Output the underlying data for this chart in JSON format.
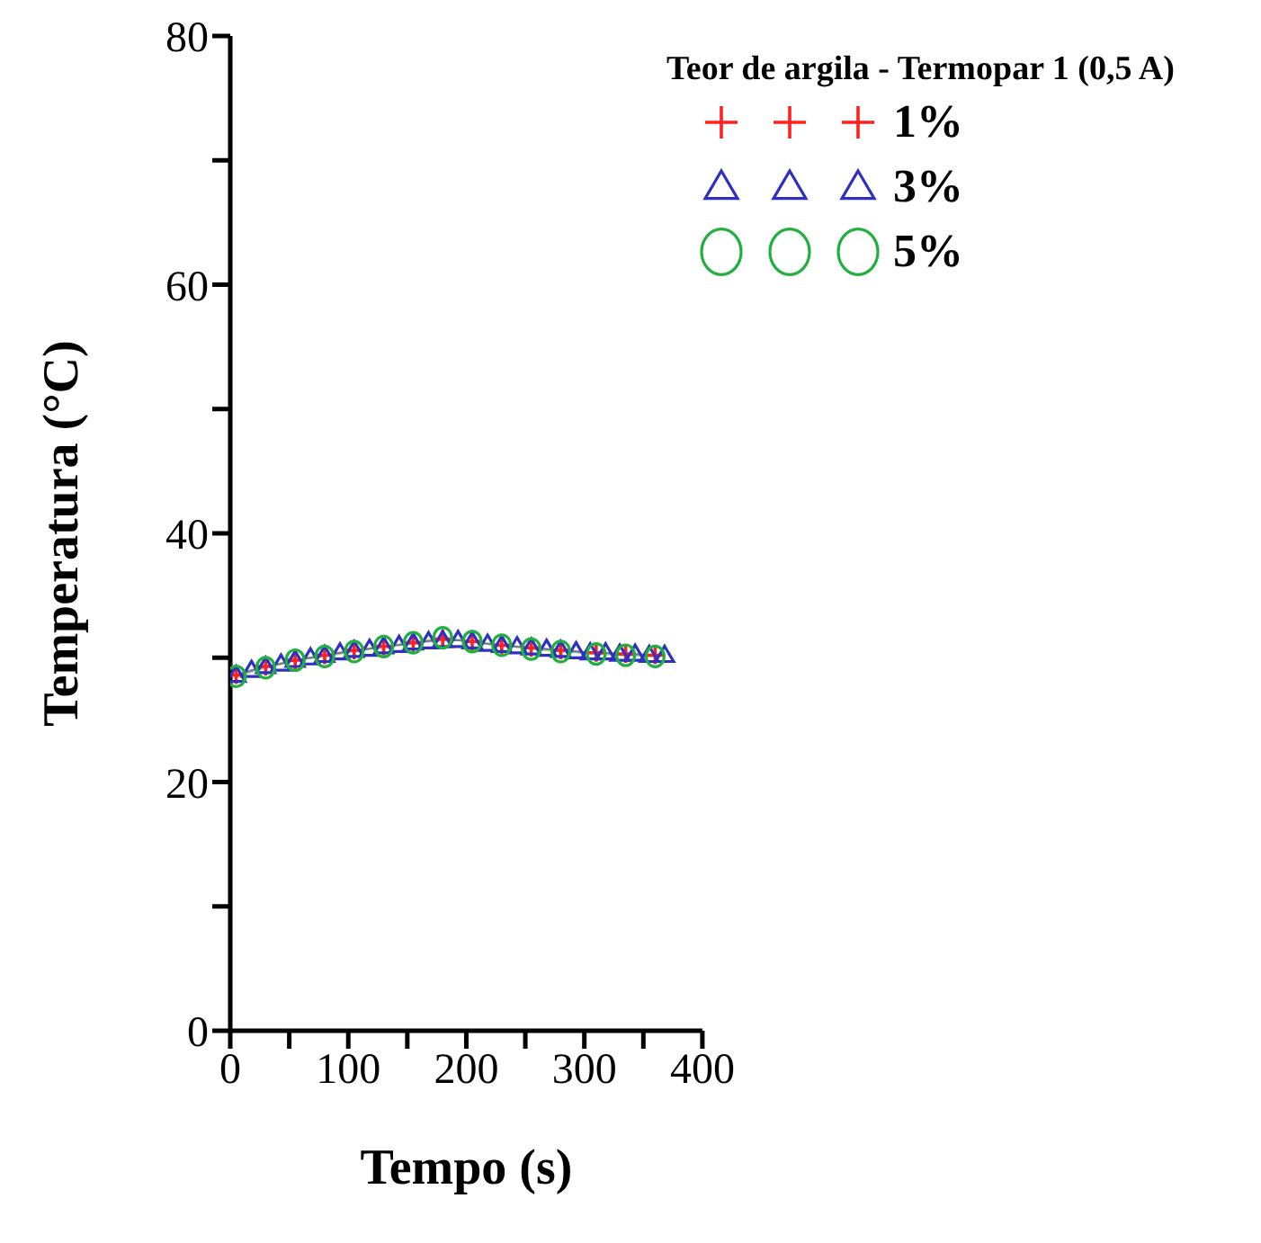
{
  "chart_data": {
    "type": "line",
    "xlabel": "Tempo (s)",
    "ylabel": "Temperatura  (°C)",
    "legend_title": "Teor de argila - Termopar 1 (0,5 A)",
    "series": [
      {
        "name": "1%",
        "color": "#ff2020",
        "marker": "cross",
        "x": [
          5,
          30,
          55,
          80,
          105,
          130,
          155,
          180,
          205,
          230,
          255,
          280,
          310,
          335,
          360
        ],
        "values": [
          28.6,
          29.3,
          29.8,
          30.2,
          30.6,
          30.9,
          31.2,
          31.5,
          31.3,
          31.0,
          30.8,
          30.6,
          30.4,
          30.3,
          30.2
        ]
      },
      {
        "name": "3%",
        "color": "#3030c0",
        "marker": "triangle",
        "x": [
          5,
          18,
          30,
          43,
          55,
          68,
          80,
          93,
          105,
          118,
          130,
          143,
          155,
          168,
          180,
          193,
          205,
          218,
          230,
          243,
          255,
          268,
          280,
          293,
          305,
          318,
          330,
          343,
          355,
          368
        ],
        "values": [
          28.6,
          29.0,
          29.3,
          29.5,
          29.8,
          30.0,
          30.2,
          30.4,
          30.6,
          30.7,
          30.9,
          31.0,
          31.2,
          31.3,
          31.4,
          31.4,
          31.3,
          31.1,
          31.0,
          30.9,
          30.8,
          30.7,
          30.6,
          30.5,
          30.4,
          30.4,
          30.3,
          30.3,
          30.2,
          30.2
        ]
      },
      {
        "name": "5%",
        "color": "#20b040",
        "marker": "circle",
        "x": [
          5,
          30,
          55,
          80,
          105,
          130,
          155,
          180,
          205,
          230,
          255,
          280,
          310,
          335,
          360
        ],
        "values": [
          28.5,
          29.2,
          29.8,
          30.1,
          30.5,
          30.9,
          31.2,
          31.6,
          31.3,
          31.0,
          30.7,
          30.5,
          30.3,
          30.2,
          30.1
        ]
      }
    ],
    "xlim": [
      0,
      400
    ],
    "xticks": [
      0,
      {
        "value": 50,
        "label": null
      },
      100,
      {
        "value": 150,
        "label": null
      },
      200,
      {
        "value": 250,
        "label": null
      },
      300,
      {
        "value": 350,
        "label": null
      },
      400
    ],
    "ylim": [
      0,
      80
    ],
    "yticks": [
      0,
      {
        "value": 10,
        "label": null
      },
      20,
      {
        "value": 30,
        "label": null
      },
      40,
      {
        "value": 50,
        "label": null
      },
      60,
      {
        "value": 70,
        "label": null
      },
      80
    ],
    "grid": false,
    "legend": "top right",
    "line_style": "solid"
  }
}
